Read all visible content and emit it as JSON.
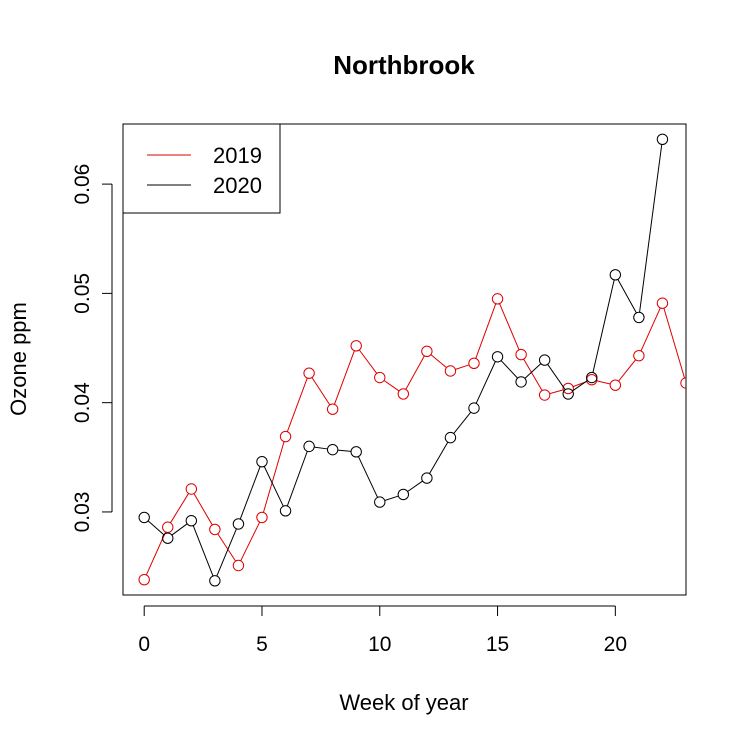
{
  "chart_data": {
    "type": "line",
    "title": "Northbrook",
    "xlabel": "Week of year",
    "ylabel": "Ozone ppm",
    "xlim": [
      -0.9,
      23
    ],
    "ylim": [
      0.0224,
      0.0655
    ],
    "xticks": [
      0,
      5,
      10,
      15,
      20
    ],
    "yticks": [
      0.03,
      0.04,
      0.05,
      0.06
    ],
    "xtick_labels": [
      "0",
      "5",
      "10",
      "15",
      "20"
    ],
    "ytick_labels": [
      "0.03",
      "0.04",
      "0.05",
      "0.06"
    ],
    "grid": false,
    "legend_position": "top-left",
    "markers": "open-circle",
    "series": [
      {
        "name": "2019",
        "color": "#DF0000",
        "x": [
          0,
          1,
          2,
          3,
          4,
          5,
          6,
          7,
          8,
          9,
          10,
          11,
          12,
          13,
          14,
          15,
          16,
          17,
          18,
          19,
          20,
          21,
          22,
          23
        ],
        "values": [
          0.0238,
          0.0286,
          0.0321,
          0.0284,
          0.0251,
          0.0295,
          0.0369,
          0.0427,
          0.0394,
          0.0452,
          0.0423,
          0.0408,
          0.0447,
          0.0429,
          0.0436,
          0.0495,
          0.0444,
          0.0407,
          0.0413,
          0.0421,
          0.0416,
          0.0443,
          0.0491,
          0.0418
        ]
      },
      {
        "name": "2020",
        "color": "#000000",
        "x": [
          0,
          1,
          2,
          3,
          4,
          5,
          6,
          7,
          8,
          9,
          10,
          11,
          12,
          13,
          14,
          15,
          16,
          17,
          18,
          19,
          20,
          21,
          22
        ],
        "values": [
          0.0295,
          0.0276,
          0.0292,
          0.0237,
          0.0289,
          0.0346,
          0.0301,
          0.036,
          0.0357,
          0.0355,
          0.0309,
          0.0316,
          0.0331,
          0.0368,
          0.0395,
          0.0442,
          0.0419,
          0.0439,
          0.0408,
          0.0423,
          0.0517,
          0.0478,
          0.0641
        ]
      }
    ]
  }
}
